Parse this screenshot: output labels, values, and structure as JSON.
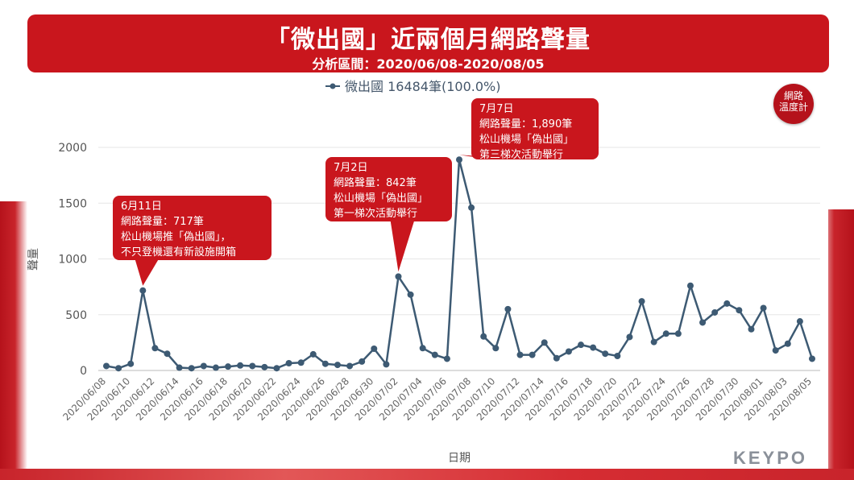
{
  "header": {
    "title": "「微出國」近兩個月網路聲量",
    "subtitle": "分析區間：2020/06/08-2020/08/05"
  },
  "logo_badge": {
    "line1": "網路",
    "line2": "溫度計"
  },
  "brand": "KEYPO",
  "colors": {
    "accent": "#c9161d",
    "line": "#3d5a73",
    "grid": "#e6e6e6"
  },
  "chart_data": {
    "type": "line",
    "xlabel": "日期",
    "ylabel": "聲量",
    "ylim": [
      0,
      2000
    ],
    "yticks": [
      0,
      500,
      1000,
      1500,
      2000
    ],
    "grid": true,
    "legend_position": "top-center",
    "x": [
      "2020/06/08",
      "2020/06/09",
      "2020/06/10",
      "2020/06/11",
      "2020/06/12",
      "2020/06/13",
      "2020/06/14",
      "2020/06/15",
      "2020/06/16",
      "2020/06/17",
      "2020/06/18",
      "2020/06/19",
      "2020/06/20",
      "2020/06/21",
      "2020/06/22",
      "2020/06/23",
      "2020/06/24",
      "2020/06/25",
      "2020/06/26",
      "2020/06/27",
      "2020/06/28",
      "2020/06/29",
      "2020/06/30",
      "2020/07/01",
      "2020/07/02",
      "2020/07/03",
      "2020/07/04",
      "2020/07/05",
      "2020/07/06",
      "2020/07/07",
      "2020/07/08",
      "2020/07/09",
      "2020/07/10",
      "2020/07/11",
      "2020/07/12",
      "2020/07/13",
      "2020/07/14",
      "2020/07/15",
      "2020/07/16",
      "2020/07/17",
      "2020/07/18",
      "2020/07/19",
      "2020/07/20",
      "2020/07/21",
      "2020/07/22",
      "2020/07/23",
      "2020/07/24",
      "2020/07/25",
      "2020/07/26",
      "2020/07/27",
      "2020/07/28",
      "2020/07/29",
      "2020/07/30",
      "2020/07/31",
      "2020/08/01",
      "2020/08/02",
      "2020/08/03",
      "2020/08/04",
      "2020/08/05"
    ],
    "x_tick_labels": [
      "2020/06/08",
      "2020/06/10",
      "2020/06/12",
      "2020/06/14",
      "2020/06/16",
      "2020/06/18",
      "2020/06/20",
      "2020/06/22",
      "2020/06/24",
      "2020/06/26",
      "2020/06/28",
      "2020/06/30",
      "2020/07/02",
      "2020/07/04",
      "2020/07/06",
      "2020/07/08",
      "2020/07/10",
      "2020/07/12",
      "2020/07/14",
      "2020/07/16",
      "2020/07/18",
      "2020/07/20",
      "2020/07/22",
      "2020/07/24",
      "2020/07/26",
      "2020/07/28",
      "2020/07/30",
      "2020/08/01",
      "2020/08/03",
      "2020/08/05"
    ],
    "series": [
      {
        "name": "微出國 16484筆(100.0%)",
        "color": "#3d5a73",
        "values": [
          40,
          20,
          60,
          717,
          200,
          150,
          25,
          20,
          40,
          25,
          35,
          45,
          40,
          30,
          20,
          65,
          70,
          145,
          60,
          50,
          40,
          80,
          195,
          55,
          842,
          680,
          200,
          140,
          105,
          1890,
          1460,
          305,
          200,
          550,
          140,
          140,
          250,
          110,
          170,
          230,
          205,
          150,
          130,
          300,
          620,
          255,
          330,
          330,
          760,
          430,
          520,
          600,
          540,
          370,
          560,
          180,
          240,
          440,
          105
        ]
      }
    ],
    "annotations": [
      {
        "index": 3,
        "lines": [
          "6月11日",
          "網路聲量：717筆",
          "松山機場推「偽出國」，",
          "不只登機還有新設施開箱"
        ]
      },
      {
        "index": 24,
        "lines": [
          "7月2日",
          "網路聲量：842筆",
          "松山機場「偽出國」",
          "第一梯次活動舉行"
        ]
      },
      {
        "index": 29,
        "lines": [
          "7月7日",
          "網路聲量：1,890筆",
          "松山機場「偽出國」",
          "第三梯次活動舉行"
        ]
      }
    ]
  }
}
